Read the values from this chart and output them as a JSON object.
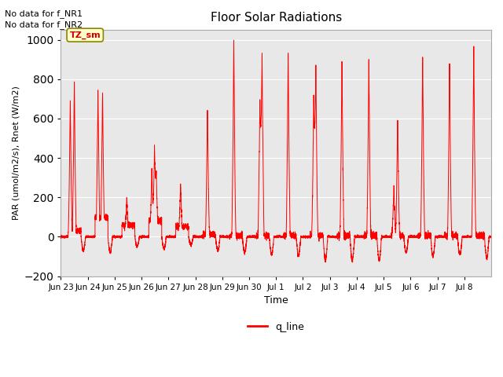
{
  "title": "Floor Solar Radiations",
  "xlabel": "Time",
  "ylabel": "PAR (umol/m2/s), Rnet (W/m2)",
  "ylim": [
    -200,
    1050
  ],
  "yticks": [
    -200,
    0,
    200,
    400,
    600,
    800,
    1000
  ],
  "line_color": "red",
  "line_label": "q_line",
  "bg_color": "#e8e8e8",
  "text_no_data1": "No data for f_NR1",
  "text_no_data2": "No data for f_NR2",
  "tz_sm_label": "TZ_sm",
  "tz_sm_box_color": "#ffffcc",
  "tz_sm_text_color": "#cc0000",
  "x_tick_labels": [
    "Jun 23",
    "Jun 24",
    "Jun 25",
    "Jun 26",
    "Jun 27",
    "Jun 28",
    "Jun 29",
    "Jun 30",
    "Jul 1",
    "Jul 2",
    "Jul 3",
    "Jul 4",
    "Jul 5",
    "Jul 6",
    "Jul 7",
    "Jul 8"
  ],
  "figsize": [
    6.4,
    4.8
  ],
  "dpi": 100,
  "grid_color": "#d0d0d0",
  "n_days": 16
}
